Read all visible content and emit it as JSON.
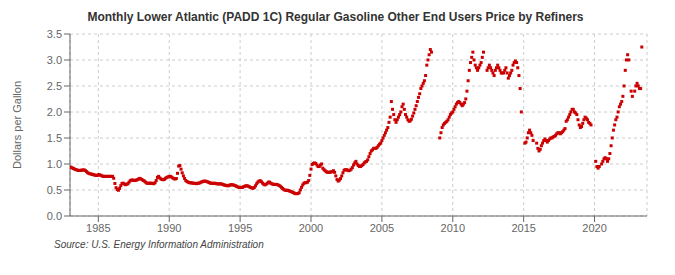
{
  "chart_data": {
    "type": "scatter",
    "title": "Monthly Lower Atlantic (PADD 1C) Regular Gasoline Other End Users Price by Refiners",
    "y_label": "Dollars per Gallon",
    "annotations": [
      "Source: U.S. Energy Information Administration"
    ],
    "color": "#cc0000",
    "marker": "square",
    "grid": true,
    "xlim": [
      1983.0,
      2023.7
    ],
    "xticks": [
      1985,
      1990,
      1995,
      2000,
      2005,
      2010,
      2015,
      2020
    ],
    "ylim": [
      0.0,
      3.5
    ],
    "yticks": [
      {
        "value": 0.0,
        "label": "0.0"
      },
      0.5,
      {
        "value": 1.0,
        "label": "1.0"
      },
      1.5,
      {
        "value": 2.0,
        "label": "2.0"
      },
      2.5,
      {
        "value": 3.0,
        "label": "3.0"
      },
      3.5
    ],
    "x": [
      1983.0,
      1983.083,
      1983.167,
      1983.25,
      1983.333,
      1983.417,
      1983.5,
      1983.583,
      1983.667,
      1983.75,
      1983.833,
      1983.917,
      1984.0,
      1984.083,
      1984.167,
      1984.25,
      1984.333,
      1984.417,
      1984.5,
      1984.583,
      1984.667,
      1984.75,
      1984.833,
      1984.917,
      1985.0,
      1985.083,
      1985.167,
      1985.25,
      1985.333,
      1985.417,
      1985.5,
      1985.583,
      1985.667,
      1985.75,
      1985.833,
      1985.917,
      1986.0,
      1986.083,
      1986.167,
      1986.25,
      1986.333,
      1986.417,
      1986.5,
      1986.583,
      1986.667,
      1986.75,
      1986.833,
      1986.917,
      1987.0,
      1987.083,
      1987.167,
      1987.25,
      1987.333,
      1987.417,
      1987.5,
      1987.583,
      1987.667,
      1987.75,
      1987.833,
      1987.917,
      1988.0,
      1988.083,
      1988.167,
      1988.25,
      1988.333,
      1988.417,
      1988.5,
      1988.583,
      1988.667,
      1988.75,
      1988.833,
      1988.917,
      1989.0,
      1989.083,
      1989.167,
      1989.25,
      1989.333,
      1989.417,
      1989.5,
      1989.583,
      1989.667,
      1989.75,
      1989.833,
      1989.917,
      1990.0,
      1990.083,
      1990.167,
      1990.25,
      1990.333,
      1990.417,
      1990.5,
      1990.583,
      1990.667,
      1990.75,
      1990.833,
      1990.917,
      1991.0,
      1991.083,
      1991.167,
      1991.25,
      1991.333,
      1991.417,
      1991.5,
      1991.583,
      1991.667,
      1991.75,
      1991.833,
      1991.917,
      1992.0,
      1992.083,
      1992.167,
      1992.25,
      1992.333,
      1992.417,
      1992.5,
      1992.583,
      1992.667,
      1992.75,
      1992.833,
      1992.917,
      1993.0,
      1993.083,
      1993.167,
      1993.25,
      1993.333,
      1993.417,
      1993.5,
      1993.583,
      1993.667,
      1993.75,
      1993.833,
      1993.917,
      1994.0,
      1994.083,
      1994.167,
      1994.25,
      1994.333,
      1994.417,
      1994.5,
      1994.583,
      1994.667,
      1994.75,
      1994.833,
      1994.917,
      1995.0,
      1995.083,
      1995.167,
      1995.25,
      1995.333,
      1995.417,
      1995.5,
      1995.583,
      1995.667,
      1995.75,
      1995.833,
      1995.917,
      1996.0,
      1996.083,
      1996.167,
      1996.25,
      1996.333,
      1996.417,
      1996.5,
      1996.583,
      1996.667,
      1996.75,
      1996.833,
      1996.917,
      1997.0,
      1997.083,
      1997.167,
      1997.25,
      1997.333,
      1997.417,
      1997.5,
      1997.583,
      1997.667,
      1997.75,
      1997.833,
      1997.917,
      1998.0,
      1998.083,
      1998.167,
      1998.25,
      1998.333,
      1998.417,
      1998.5,
      1998.583,
      1998.667,
      1998.75,
      1998.833,
      1998.917,
      1999.0,
      1999.083,
      1999.167,
      1999.25,
      1999.333,
      1999.417,
      1999.5,
      1999.583,
      1999.667,
      1999.75,
      1999.833,
      1999.917,
      2000.0,
      2000.083,
      2000.167,
      2000.25,
      2000.333,
      2000.417,
      2000.5,
      2000.583,
      2000.667,
      2000.75,
      2000.833,
      2000.917,
      2001.0,
      2001.083,
      2001.167,
      2001.25,
      2001.333,
      2001.417,
      2001.5,
      2001.583,
      2001.667,
      2001.75,
      2001.833,
      2001.917,
      2002.0,
      2002.083,
      2002.167,
      2002.25,
      2002.333,
      2002.417,
      2002.5,
      2002.583,
      2002.667,
      2002.75,
      2002.833,
      2002.917,
      2003.0,
      2003.083,
      2003.167,
      2003.25,
      2003.333,
      2003.417,
      2003.5,
      2003.583,
      2003.667,
      2003.75,
      2003.833,
      2003.917,
      2004.0,
      2004.083,
      2004.167,
      2004.25,
      2004.333,
      2004.417,
      2004.5,
      2004.583,
      2004.667,
      2004.75,
      2004.833,
      2004.917,
      2005.0,
      2005.083,
      2005.167,
      2005.25,
      2005.333,
      2005.417,
      2005.5,
      2005.583,
      2005.667,
      2005.75,
      2005.833,
      2005.917,
      2006.0,
      2006.083,
      2006.167,
      2006.25,
      2006.333,
      2006.417,
      2006.5,
      2006.583,
      2006.667,
      2006.75,
      2006.833,
      2006.917,
      2007.0,
      2007.083,
      2007.167,
      2007.25,
      2007.333,
      2007.417,
      2007.5,
      2007.583,
      2007.667,
      2007.75,
      2007.833,
      2007.917,
      2008.0,
      2008.083,
      2008.167,
      2008.25,
      2008.333,
      2008.417,
      2008.5,
      2009.083,
      2009.167,
      2009.25,
      2009.333,
      2009.417,
      2009.5,
      2009.583,
      2009.667,
      2009.75,
      2009.833,
      2009.917,
      2010.0,
      2010.083,
      2010.167,
      2010.25,
      2010.333,
      2010.417,
      2010.5,
      2010.583,
      2010.667,
      2010.75,
      2010.833,
      2010.917,
      2011.0,
      2011.083,
      2011.167,
      2011.25,
      2011.333,
      2011.417,
      2011.5,
      2011.583,
      2011.667,
      2011.75,
      2011.833,
      2011.917,
      2012.0,
      2012.083,
      2012.167,
      2012.417,
      2012.5,
      2012.583,
      2012.667,
      2012.75,
      2012.833,
      2012.917,
      2013.0,
      2013.083,
      2013.167,
      2013.25,
      2013.333,
      2013.417,
      2013.5,
      2013.583,
      2013.667,
      2013.75,
      2013.833,
      2013.917,
      2014.0,
      2014.083,
      2014.167,
      2014.25,
      2014.333,
      2014.417,
      2014.5,
      2014.583,
      2014.667,
      2014.75,
      2014.833,
      2015.083,
      2015.167,
      2015.25,
      2015.333,
      2015.417,
      2015.5,
      2015.583,
      2015.667,
      2015.917,
      2016.0,
      2016.083,
      2016.167,
      2016.25,
      2016.333,
      2016.417,
      2016.5,
      2016.583,
      2016.667,
      2016.75,
      2016.833,
      2016.917,
      2017.0,
      2017.083,
      2017.167,
      2017.25,
      2017.333,
      2017.417,
      2017.5,
      2017.583,
      2017.667,
      2017.75,
      2017.833,
      2017.917,
      2018.0,
      2018.083,
      2018.167,
      2018.25,
      2018.333,
      2018.417,
      2018.5,
      2018.583,
      2018.667,
      2018.75,
      2018.833,
      2018.917,
      2019.0,
      2019.083,
      2019.167,
      2019.25,
      2019.333,
      2019.417,
      2019.5,
      2019.583,
      2019.667,
      2019.75,
      2020.083,
      2020.167,
      2020.25,
      2020.333,
      2020.5,
      2020.583,
      2020.667,
      2020.75,
      2020.833,
      2020.917,
      2021.0,
      2021.083,
      2021.167,
      2021.25,
      2021.333,
      2021.417,
      2021.5,
      2021.583,
      2021.667,
      2021.75,
      2021.833,
      2021.917,
      2022.0,
      2022.083,
      2022.167,
      2022.25,
      2022.333,
      2022.417,
      2022.583,
      2022.667,
      2022.833,
      2022.917,
      2023.0,
      2023.083,
      2023.167,
      2023.25,
      2023.333
    ],
    "values": [
      0.944,
      0.935,
      0.924,
      0.912,
      0.901,
      0.892,
      0.884,
      0.877,
      0.875,
      0.878,
      0.882,
      0.885,
      0.886,
      0.874,
      0.853,
      0.832,
      0.819,
      0.812,
      0.806,
      0.8,
      0.793,
      0.787,
      0.782,
      0.779,
      0.793,
      0.793,
      0.782,
      0.772,
      0.762,
      0.762,
      0.762,
      0.762,
      0.762,
      0.762,
      0.762,
      0.762,
      0.762,
      0.726,
      0.626,
      0.545,
      0.51,
      0.495,
      0.532,
      0.583,
      0.626,
      0.632,
      0.614,
      0.601,
      0.612,
      0.621,
      0.651,
      0.679,
      0.69,
      0.69,
      0.688,
      0.682,
      0.689,
      0.698,
      0.71,
      0.723,
      0.712,
      0.7,
      0.682,
      0.671,
      0.651,
      0.631,
      0.629,
      0.631,
      0.631,
      0.629,
      0.626,
      0.621,
      0.641,
      0.682,
      0.742,
      0.762,
      0.732,
      0.712,
      0.701,
      0.698,
      0.707,
      0.728,
      0.742,
      0.752,
      0.762,
      0.762,
      0.748,
      0.731,
      0.718,
      0.711,
      0.721,
      0.821,
      0.96,
      0.97,
      0.901,
      0.83,
      0.771,
      0.72,
      0.682,
      0.663,
      0.651,
      0.641,
      0.638,
      0.638,
      0.631,
      0.628,
      0.628,
      0.621,
      0.629,
      0.631,
      0.638,
      0.651,
      0.66,
      0.668,
      0.671,
      0.668,
      0.66,
      0.651,
      0.641,
      0.631,
      0.629,
      0.629,
      0.629,
      0.629,
      0.621,
      0.618,
      0.618,
      0.618,
      0.618,
      0.61,
      0.601,
      0.591,
      0.591,
      0.582,
      0.582,
      0.591,
      0.601,
      0.601,
      0.598,
      0.591,
      0.582,
      0.572,
      0.56,
      0.549,
      0.551,
      0.549,
      0.551,
      0.563,
      0.572,
      0.582,
      0.58,
      0.572,
      0.56,
      0.549,
      0.541,
      0.532,
      0.549,
      0.58,
      0.621,
      0.651,
      0.671,
      0.679,
      0.66,
      0.632,
      0.61,
      0.598,
      0.61,
      0.629,
      0.651,
      0.651,
      0.629,
      0.618,
      0.61,
      0.607,
      0.607,
      0.607,
      0.598,
      0.588,
      0.572,
      0.551,
      0.529,
      0.51,
      0.495,
      0.495,
      0.495,
      0.488,
      0.479,
      0.471,
      0.46,
      0.449,
      0.438,
      0.43,
      0.43,
      0.432,
      0.449,
      0.502,
      0.551,
      0.598,
      0.629,
      0.641,
      0.641,
      0.651,
      0.682,
      0.781,
      0.901,
      0.99,
      1.01,
      1.021,
      1.01,
      0.981,
      0.951,
      0.951,
      0.981,
      1.001,
      0.92,
      0.89,
      0.871,
      0.851,
      0.84,
      0.84,
      0.84,
      0.851,
      0.851,
      0.871,
      0.84,
      0.771,
      0.701,
      0.671,
      0.69,
      0.72,
      0.771,
      0.831,
      0.88,
      0.89,
      0.89,
      0.88,
      0.871,
      0.88,
      0.901,
      0.931,
      0.981,
      1.021,
      1.051,
      1.001,
      0.971,
      0.951,
      0.951,
      0.971,
      0.99,
      1.021,
      1.041,
      1.051,
      1.081,
      1.141,
      1.201,
      1.251,
      1.271,
      1.301,
      1.301,
      1.301,
      1.321,
      1.351,
      1.381,
      1.401,
      1.451,
      1.501,
      1.551,
      1.601,
      1.651,
      1.701,
      1.801,
      1.901,
      2.201,
      2.051,
      1.951,
      1.851,
      1.801,
      1.851,
      1.901,
      1.951,
      2.001,
      2.101,
      2.151,
      2.051,
      1.951,
      1.901,
      1.851,
      1.821,
      1.831,
      1.861,
      1.921,
      1.981,
      2.051,
      2.121,
      2.201,
      2.281,
      2.351,
      2.451,
      2.501,
      2.551,
      2.601,
      2.701,
      2.901,
      3.001,
      3.101,
      3.201,
      3.151,
      1.501,
      1.601,
      1.701,
      1.751,
      1.781,
      1.801,
      1.821,
      1.851,
      1.901,
      1.951,
      1.981,
      2.001,
      2.051,
      2.101,
      2.151,
      2.181,
      2.201,
      2.181,
      2.151,
      2.121,
      2.151,
      2.181,
      2.251,
      2.401,
      2.601,
      2.801,
      2.951,
      3.051,
      3.151,
      3.001,
      2.901,
      2.851,
      2.801,
      2.851,
      2.901,
      2.951,
      3.051,
      3.151,
      2.801,
      2.851,
      2.901,
      2.851,
      2.801,
      2.751,
      2.701,
      2.801,
      2.851,
      2.901,
      2.851,
      2.801,
      2.751,
      2.751,
      2.751,
      2.801,
      2.851,
      2.751,
      2.651,
      2.701,
      2.751,
      2.801,
      2.901,
      2.951,
      2.981,
      2.951,
      2.851,
      2.701,
      2.451,
      2.001,
      1.401,
      1.421,
      1.501,
      1.601,
      1.651,
      1.601,
      1.551,
      1.451,
      1.401,
      1.301,
      1.251,
      1.281,
      1.351,
      1.401,
      1.451,
      1.481,
      1.451,
      1.421,
      1.451,
      1.481,
      1.501,
      1.501,
      1.521,
      1.531,
      1.551,
      1.581,
      1.601,
      1.601,
      1.581,
      1.601,
      1.621,
      1.651,
      1.681,
      1.821,
      1.851,
      1.901,
      1.951,
      2.001,
      2.051,
      2.051,
      2.001,
      1.981,
      1.951,
      1.851,
      1.751,
      1.701,
      1.721,
      1.781,
      1.851,
      1.901,
      1.881,
      1.851,
      1.801,
      1.781,
      1.751,
      1.051,
      0.951,
      0.921,
      0.951,
      1.001,
      1.051,
      1.101,
      1.121,
      1.101,
      1.051,
      1.101,
      1.201,
      1.351,
      1.501,
      1.651,
      1.751,
      1.851,
      1.901,
      2.001,
      2.101,
      2.151,
      2.201,
      2.301,
      2.501,
      2.801,
      3.001,
      3.101,
      3.001,
      2.401,
      2.301,
      2.401,
      2.501,
      2.551,
      2.501,
      2.451,
      2.451,
      3.25
    ]
  }
}
